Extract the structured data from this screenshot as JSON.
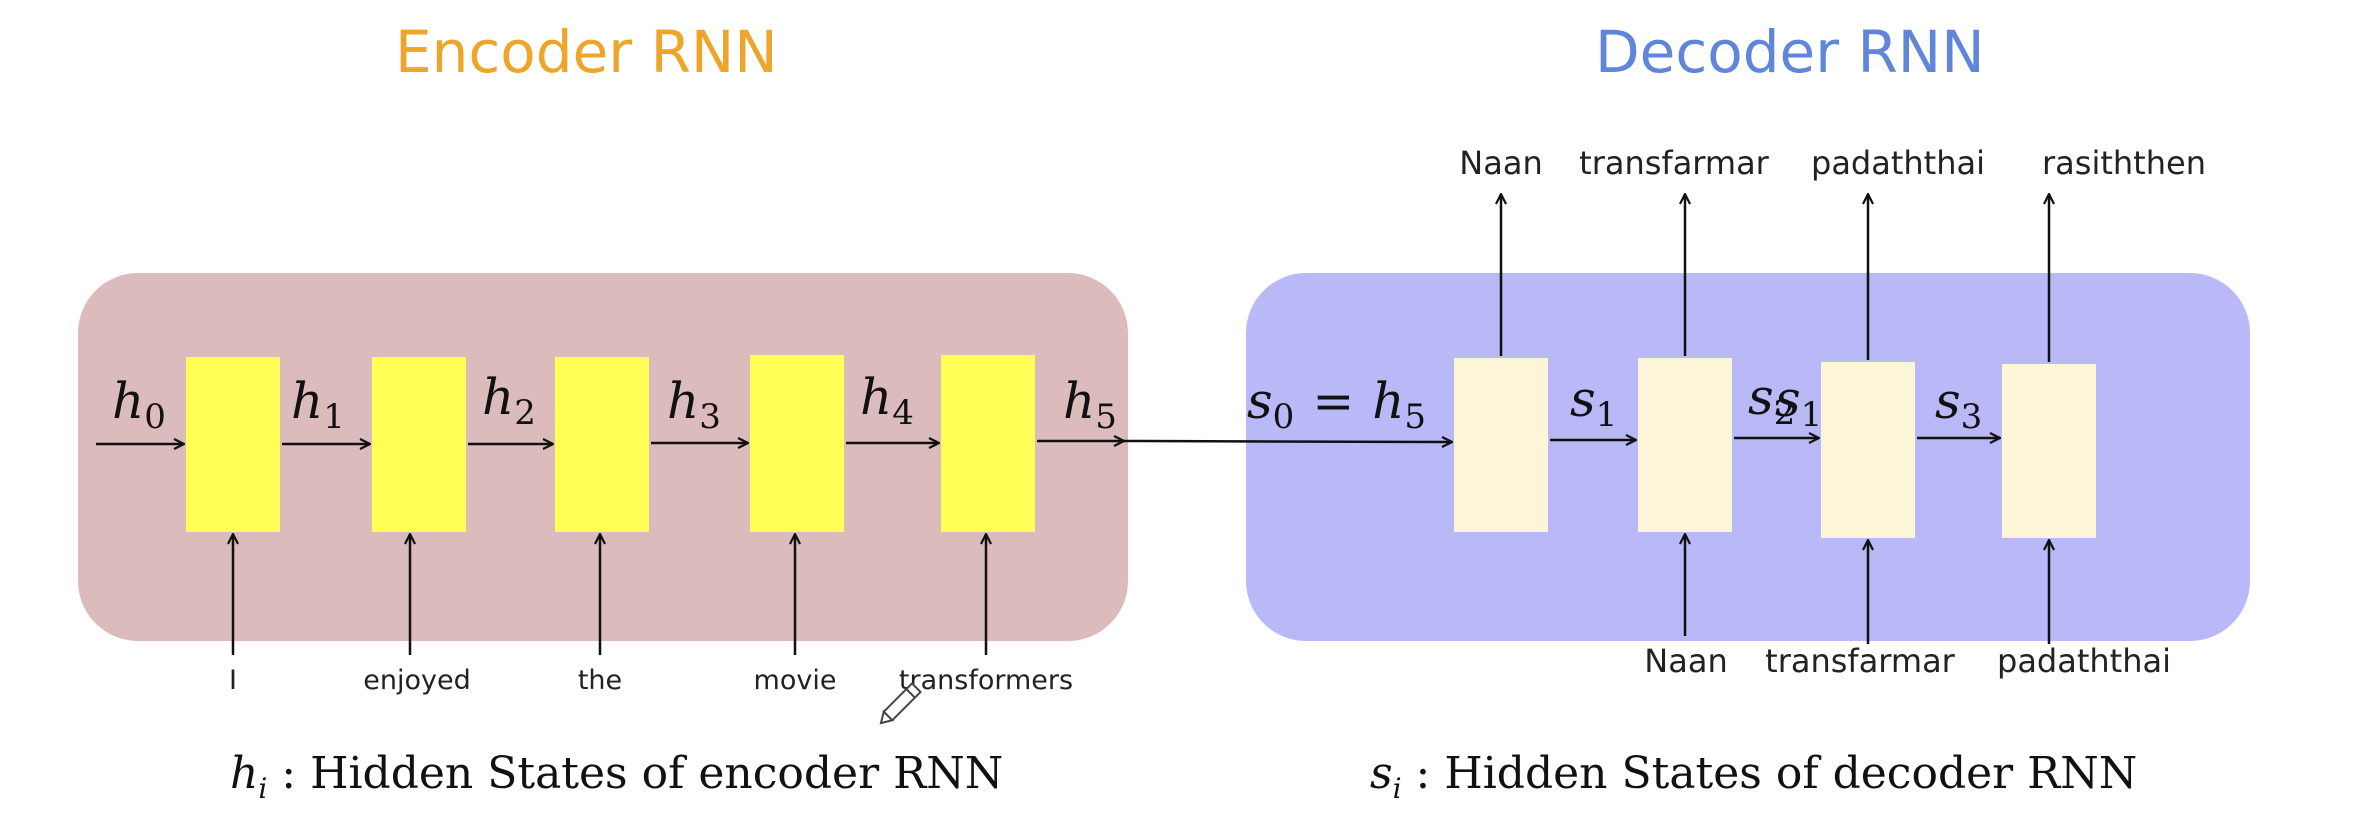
{
  "titles": {
    "encoder": "Encoder RNN",
    "decoder": "Decoder RNN"
  },
  "colors": {
    "encoder_title": "#eda52a",
    "decoder_title": "#5f86d8",
    "encoder_panel": "#dcbbbd",
    "decoder_panel": "#b9b9f8",
    "encoder_cell": "#ffff55",
    "decoder_cell": "#fcf5d8",
    "arrow": "#111111"
  },
  "encoder": {
    "hidden_labels": [
      {
        "base": "h",
        "sub": "0"
      },
      {
        "base": "h",
        "sub": "1"
      },
      {
        "base": "h",
        "sub": "2"
      },
      {
        "base": "h",
        "sub": "3"
      },
      {
        "base": "h",
        "sub": "4"
      },
      {
        "base": "h",
        "sub": "5"
      }
    ],
    "input_words": [
      "I",
      "enjoyed",
      "the",
      "movie",
      "transformers"
    ]
  },
  "decoder": {
    "initial_state": {
      "left": "s",
      "left_sub": "0",
      "eq": "=",
      "right": "h",
      "right_sub": "5"
    },
    "state_labels": [
      {
        "base": "s",
        "sub": "1"
      },
      {
        "base": "s",
        "sub": "2"
      },
      {
        "base": "s",
        "sub": "3"
      }
    ],
    "overlap_label": {
      "base": "s",
      "sub": "1"
    },
    "output_words": [
      "Naan",
      "transfarmar",
      "padaththai",
      "rasiththen"
    ],
    "input_words": [
      "Naan",
      "transfarmar",
      "padaththai"
    ]
  },
  "captions": {
    "encoder": {
      "var": "h",
      "sub": "i",
      "text": " : Hidden States of encoder RNN"
    },
    "decoder": {
      "var": "s",
      "sub": "i",
      "text": " : Hidden States of decoder RNN"
    }
  },
  "icons": [
    "pencil-cursor-icon"
  ]
}
